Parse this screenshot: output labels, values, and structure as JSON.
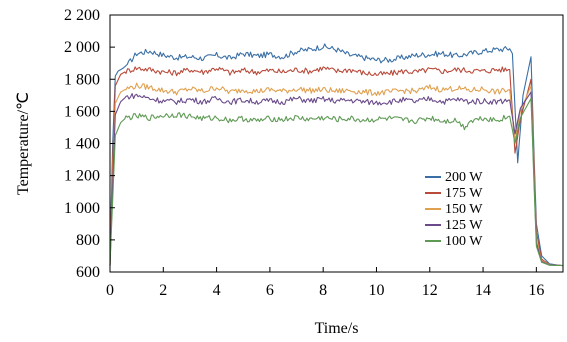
{
  "chart_data": {
    "type": "line",
    "title": "",
    "xlabel": "Time/s",
    "ylabel": "Temperature/℃",
    "xlim": [
      0,
      17
    ],
    "ylim": [
      600,
      2200
    ],
    "xticks": [
      0,
      2,
      4,
      6,
      8,
      10,
      12,
      14,
      16
    ],
    "xtick_labels": [
      "0",
      "2",
      "4",
      "6",
      "8",
      "10",
      "12",
      "14",
      "16"
    ],
    "yticks": [
      600,
      800,
      1000,
      1200,
      1400,
      1600,
      1800,
      2000,
      2200
    ],
    "ytick_labels": [
      "600",
      "800",
      "1 000",
      "1 200",
      "1 400",
      "1 600",
      "1 800",
      "2 000",
      "2 200"
    ],
    "grid": false,
    "legend_position": "right",
    "series": [
      {
        "name": "200 W",
        "color": "#3a6fa5",
        "points": [
          [
            0.0,
            640
          ],
          [
            0.1,
            1400
          ],
          [
            0.2,
            1820
          ],
          [
            0.3,
            1850
          ],
          [
            0.5,
            1870
          ],
          [
            0.7,
            1900
          ],
          [
            1.0,
            1960
          ],
          [
            1.5,
            1975
          ],
          [
            2.0,
            1950
          ],
          [
            2.5,
            1935
          ],
          [
            3.0,
            1940
          ],
          [
            3.5,
            1930
          ],
          [
            4.0,
            1950
          ],
          [
            4.5,
            1930
          ],
          [
            5.0,
            1960
          ],
          [
            5.5,
            1945
          ],
          [
            6.0,
            1955
          ],
          [
            6.5,
            1940
          ],
          [
            7.0,
            1975
          ],
          [
            7.5,
            1985
          ],
          [
            8.0,
            2005
          ],
          [
            8.5,
            1985
          ],
          [
            9.0,
            1950
          ],
          [
            9.5,
            1935
          ],
          [
            10.0,
            1920
          ],
          [
            10.5,
            1920
          ],
          [
            11.0,
            1935
          ],
          [
            11.5,
            1950
          ],
          [
            12.0,
            1955
          ],
          [
            12.5,
            1960
          ],
          [
            13.0,
            1945
          ],
          [
            13.5,
            1960
          ],
          [
            14.0,
            1975
          ],
          [
            14.5,
            1985
          ],
          [
            15.0,
            1990
          ],
          [
            15.1,
            1960
          ],
          [
            15.3,
            1280
          ],
          [
            15.5,
            1700
          ],
          [
            15.8,
            1940
          ],
          [
            15.9,
            1400
          ],
          [
            16.0,
            900
          ],
          [
            16.2,
            700
          ],
          [
            16.5,
            650
          ],
          [
            17.0,
            640
          ]
        ]
      },
      {
        "name": "175 W",
        "color": "#b84a3a",
        "points": [
          [
            0.0,
            640
          ],
          [
            0.1,
            1300
          ],
          [
            0.2,
            1760
          ],
          [
            0.4,
            1830
          ],
          [
            0.6,
            1850
          ],
          [
            1.0,
            1870
          ],
          [
            1.5,
            1860
          ],
          [
            2.0,
            1845
          ],
          [
            2.5,
            1840
          ],
          [
            3.0,
            1860
          ],
          [
            3.5,
            1845
          ],
          [
            4.0,
            1870
          ],
          [
            4.5,
            1840
          ],
          [
            5.0,
            1855
          ],
          [
            5.5,
            1845
          ],
          [
            6.0,
            1855
          ],
          [
            6.5,
            1845
          ],
          [
            7.0,
            1860
          ],
          [
            7.5,
            1850
          ],
          [
            8.0,
            1870
          ],
          [
            8.5,
            1850
          ],
          [
            9.0,
            1860
          ],
          [
            9.5,
            1840
          ],
          [
            10.0,
            1830
          ],
          [
            10.5,
            1835
          ],
          [
            11.0,
            1850
          ],
          [
            11.5,
            1845
          ],
          [
            12.0,
            1860
          ],
          [
            12.5,
            1850
          ],
          [
            13.0,
            1860
          ],
          [
            13.5,
            1855
          ],
          [
            14.0,
            1850
          ],
          [
            14.5,
            1860
          ],
          [
            15.0,
            1860
          ],
          [
            15.2,
            1340
          ],
          [
            15.4,
            1550
          ],
          [
            15.8,
            1800
          ],
          [
            15.9,
            1350
          ],
          [
            16.0,
            850
          ],
          [
            16.2,
            680
          ],
          [
            16.5,
            645
          ],
          [
            17.0,
            640
          ]
        ]
      },
      {
        "name": "150 W",
        "color": "#e0a050",
        "points": [
          [
            0.0,
            640
          ],
          [
            0.1,
            1200
          ],
          [
            0.2,
            1650
          ],
          [
            0.4,
            1720
          ],
          [
            0.6,
            1740
          ],
          [
            1.0,
            1760
          ],
          [
            1.5,
            1750
          ],
          [
            2.0,
            1730
          ],
          [
            2.5,
            1720
          ],
          [
            3.0,
            1740
          ],
          [
            3.5,
            1725
          ],
          [
            4.0,
            1750
          ],
          [
            4.5,
            1720
          ],
          [
            5.0,
            1735
          ],
          [
            5.5,
            1725
          ],
          [
            6.0,
            1735
          ],
          [
            6.5,
            1725
          ],
          [
            7.0,
            1740
          ],
          [
            7.5,
            1730
          ],
          [
            8.0,
            1735
          ],
          [
            8.5,
            1725
          ],
          [
            9.0,
            1730
          ],
          [
            9.5,
            1720
          ],
          [
            10.0,
            1715
          ],
          [
            10.5,
            1720
          ],
          [
            11.0,
            1730
          ],
          [
            11.5,
            1725
          ],
          [
            12.0,
            1750
          ],
          [
            12.5,
            1735
          ],
          [
            13.0,
            1745
          ],
          [
            13.5,
            1730
          ],
          [
            14.0,
            1740
          ],
          [
            14.5,
            1720
          ],
          [
            15.0,
            1735
          ],
          [
            15.2,
            1420
          ],
          [
            15.4,
            1600
          ],
          [
            15.8,
            1760
          ],
          [
            15.9,
            1300
          ],
          [
            16.0,
            800
          ],
          [
            16.2,
            670
          ],
          [
            16.5,
            645
          ],
          [
            17.0,
            640
          ]
        ]
      },
      {
        "name": "125 W",
        "color": "#6a4a8a",
        "points": [
          [
            0.0,
            640
          ],
          [
            0.1,
            1150
          ],
          [
            0.2,
            1580
          ],
          [
            0.4,
            1660
          ],
          [
            0.6,
            1690
          ],
          [
            1.0,
            1700
          ],
          [
            1.5,
            1680
          ],
          [
            2.0,
            1665
          ],
          [
            2.5,
            1660
          ],
          [
            3.0,
            1675
          ],
          [
            3.5,
            1660
          ],
          [
            4.0,
            1680
          ],
          [
            4.5,
            1660
          ],
          [
            5.0,
            1670
          ],
          [
            5.5,
            1660
          ],
          [
            6.0,
            1665
          ],
          [
            6.5,
            1660
          ],
          [
            7.0,
            1680
          ],
          [
            7.5,
            1665
          ],
          [
            8.0,
            1675
          ],
          [
            8.5,
            1665
          ],
          [
            9.0,
            1670
          ],
          [
            9.5,
            1660
          ],
          [
            10.0,
            1655
          ],
          [
            10.5,
            1660
          ],
          [
            11.0,
            1670
          ],
          [
            11.5,
            1660
          ],
          [
            12.0,
            1680
          ],
          [
            12.5,
            1660
          ],
          [
            13.0,
            1675
          ],
          [
            13.5,
            1660
          ],
          [
            14.0,
            1665
          ],
          [
            14.5,
            1660
          ],
          [
            15.0,
            1670
          ],
          [
            15.2,
            1460
          ],
          [
            15.4,
            1620
          ],
          [
            15.8,
            1720
          ],
          [
            15.9,
            1250
          ],
          [
            16.0,
            780
          ],
          [
            16.2,
            665
          ],
          [
            16.5,
            643
          ],
          [
            17.0,
            640
          ]
        ]
      },
      {
        "name": "100 W",
        "color": "#5f9a55",
        "points": [
          [
            0.0,
            640
          ],
          [
            0.1,
            1050
          ],
          [
            0.2,
            1450
          ],
          [
            0.4,
            1530
          ],
          [
            0.6,
            1560
          ],
          [
            1.0,
            1570
          ],
          [
            1.5,
            1560
          ],
          [
            2.0,
            1575
          ],
          [
            2.5,
            1580
          ],
          [
            3.0,
            1570
          ],
          [
            3.5,
            1555
          ],
          [
            4.0,
            1560
          ],
          [
            4.5,
            1545
          ],
          [
            5.0,
            1555
          ],
          [
            5.5,
            1540
          ],
          [
            6.0,
            1555
          ],
          [
            6.5,
            1550
          ],
          [
            7.0,
            1560
          ],
          [
            7.5,
            1550
          ],
          [
            8.0,
            1560
          ],
          [
            8.5,
            1550
          ],
          [
            9.0,
            1555
          ],
          [
            9.5,
            1545
          ],
          [
            10.0,
            1550
          ],
          [
            10.5,
            1555
          ],
          [
            11.0,
            1545
          ],
          [
            11.5,
            1540
          ],
          [
            12.0,
            1560
          ],
          [
            12.5,
            1540
          ],
          [
            13.0,
            1545
          ],
          [
            13.3,
            1500
          ],
          [
            13.5,
            1540
          ],
          [
            14.0,
            1560
          ],
          [
            14.5,
            1545
          ],
          [
            15.0,
            1570
          ],
          [
            15.2,
            1400
          ],
          [
            15.4,
            1560
          ],
          [
            15.8,
            1680
          ],
          [
            15.9,
            1200
          ],
          [
            16.0,
            760
          ],
          [
            16.2,
            660
          ],
          [
            16.5,
            642
          ],
          [
            17.0,
            640
          ]
        ]
      }
    ]
  }
}
